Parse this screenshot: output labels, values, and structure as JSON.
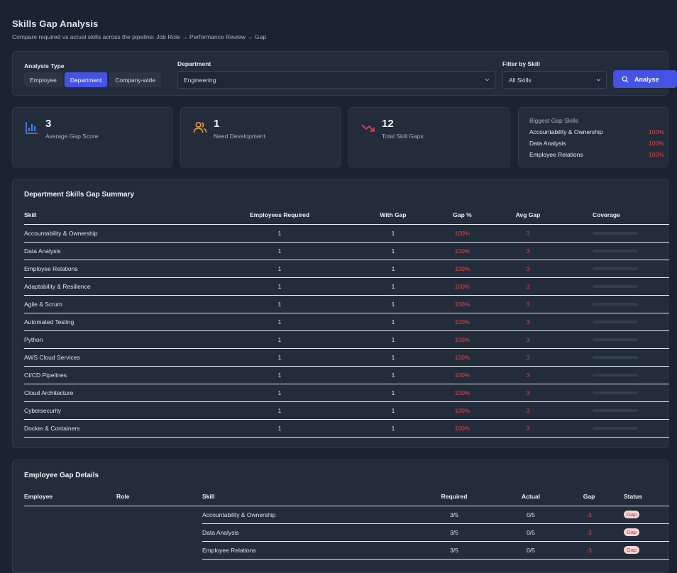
{
  "header": {
    "title": "Skills Gap Analysis",
    "subtitle": "Compare required vs actual skills across the pipeline: Job Role → Performance Review → Gap"
  },
  "filters": {
    "analysis_type_label": "Analysis Type",
    "analysis_types": [
      "Employee",
      "Department",
      "Company-wide"
    ],
    "selected_analysis_type": "Department",
    "department_label": "Department",
    "department_value": "Engineering",
    "skill_label": "Filter by Skill",
    "skill_value": "All Skills",
    "analyse_label": "Analyse"
  },
  "stats": [
    {
      "value": "3",
      "label": "Average Gap Score",
      "icon": "bar-chart-icon",
      "color": "#4a8cf0"
    },
    {
      "value": "1",
      "label": "Need Development",
      "icon": "users-icon",
      "color": "#f0a43a"
    },
    {
      "value": "12",
      "label": "Total Skill Gaps",
      "icon": "trending-down-icon",
      "color": "#e04848"
    }
  ],
  "biggest_gaps": {
    "title": "Biggest Gap Skills",
    "items": [
      {
        "skill": "Accountability & Ownership",
        "pct": "100%"
      },
      {
        "skill": "Data Analysis",
        "pct": "100%"
      },
      {
        "skill": "Employee Relations",
        "pct": "100%"
      }
    ]
  },
  "dept_summary": {
    "title": "Department Skills Gap Summary",
    "columns": [
      "Skill",
      "Employees Required",
      "With Gap",
      "Gap %",
      "Avg Gap",
      "Coverage"
    ],
    "rows": [
      {
        "skill": "Accountability & Ownership",
        "required": "1",
        "with_gap": "1",
        "gap_pct": "100%",
        "avg_gap": "3",
        "coverage": 0
      },
      {
        "skill": "Data Analysis",
        "required": "1",
        "with_gap": "1",
        "gap_pct": "100%",
        "avg_gap": "3",
        "coverage": 0
      },
      {
        "skill": "Employee Relations",
        "required": "1",
        "with_gap": "1",
        "gap_pct": "100%",
        "avg_gap": "3",
        "coverage": 0
      },
      {
        "skill": "Adaptability & Resilience",
        "required": "1",
        "with_gap": "1",
        "gap_pct": "100%",
        "avg_gap": "3",
        "coverage": 0
      },
      {
        "skill": "Agile & Scrum",
        "required": "1",
        "with_gap": "1",
        "gap_pct": "100%",
        "avg_gap": "3",
        "coverage": 0
      },
      {
        "skill": "Automated Testing",
        "required": "1",
        "with_gap": "1",
        "gap_pct": "100%",
        "avg_gap": "3",
        "coverage": 0
      },
      {
        "skill": "Python",
        "required": "1",
        "with_gap": "1",
        "gap_pct": "100%",
        "avg_gap": "3",
        "coverage": 0
      },
      {
        "skill": "AWS Cloud Services",
        "required": "1",
        "with_gap": "1",
        "gap_pct": "100%",
        "avg_gap": "3",
        "coverage": 0
      },
      {
        "skill": "CI/CD Pipelines",
        "required": "1",
        "with_gap": "1",
        "gap_pct": "100%",
        "avg_gap": "3",
        "coverage": 0
      },
      {
        "skill": "Cloud Architecture",
        "required": "1",
        "with_gap": "1",
        "gap_pct": "100%",
        "avg_gap": "3",
        "coverage": 0
      },
      {
        "skill": "Cybersecurity",
        "required": "1",
        "with_gap": "1",
        "gap_pct": "100%",
        "avg_gap": "3",
        "coverage": 0
      },
      {
        "skill": "Docker & Containers",
        "required": "1",
        "with_gap": "1",
        "gap_pct": "100%",
        "avg_gap": "3",
        "coverage": 0
      }
    ]
  },
  "employee_details": {
    "title": "Employee Gap Details",
    "columns": [
      "Employee",
      "Role",
      "Skill",
      "Required",
      "Actual",
      "Gap",
      "Status"
    ],
    "rows": [
      {
        "employee": "",
        "role": "",
        "skill": "Accountability & Ownership",
        "required": "3/5",
        "actual": "0/5",
        "gap": "-3",
        "status": "Gap"
      },
      {
        "employee": "",
        "role": "",
        "skill": "Data Analysis",
        "required": "3/5",
        "actual": "0/5",
        "gap": "-3",
        "status": "Gap"
      },
      {
        "employee": "",
        "role": "",
        "skill": "Employee Relations",
        "required": "3/5",
        "actual": "0/5",
        "gap": "-3",
        "status": "Gap"
      }
    ]
  }
}
